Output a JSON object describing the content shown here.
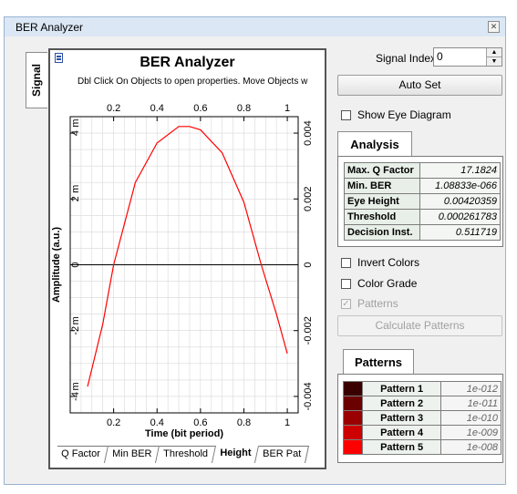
{
  "window": {
    "title": "BER Analyzer",
    "close_icon": "close-icon"
  },
  "side_tab": {
    "label": "Signal"
  },
  "plot": {
    "title": "BER Analyzer",
    "subtitle": "Dbl Click On Objects to open properties.  Move Objects w",
    "x_axis_label": "Time (bit period)",
    "y_axis_label": "Amplitude (a.u.)",
    "top_ticks": [
      "0.2",
      "0.4",
      "0.6",
      "0.8",
      "1"
    ],
    "bottom_ticks": [
      "0.2",
      "0.4",
      "0.6",
      "0.8",
      "1"
    ],
    "left_ticks": [
      "4",
      "2",
      "0",
      "-2",
      "-4"
    ],
    "left_units": [
      "m",
      "m",
      "m",
      "m"
    ],
    "right_ticks": [
      "0.004",
      "0.002",
      "0",
      "-0.002",
      "-0.004"
    ],
    "tabs": [
      "Q Factor",
      "Min BER",
      "Threshold",
      "Height",
      "BER Pat"
    ],
    "active_tab": "Height"
  },
  "chart_data": {
    "type": "line",
    "xlim": [
      0,
      1.05
    ],
    "ylim": [
      -0.0045,
      0.0045
    ],
    "series": [
      {
        "color": "#ff0000",
        "x": [
          0.08,
          0.15,
          0.2,
          0.3,
          0.4,
          0.5,
          0.55,
          0.6,
          0.7,
          0.8,
          0.88,
          0.95,
          1.0
        ],
        "y": [
          -0.0037,
          -0.0018,
          0.0,
          0.0025,
          0.0037,
          0.0042,
          0.0042,
          0.0041,
          0.0034,
          0.0019,
          0.0,
          -0.0015,
          -0.0027
        ]
      }
    ],
    "grid": true
  },
  "controls": {
    "signal_index_label": "Signal Index:",
    "signal_index_value": "0",
    "auto_set_label": "Auto Set",
    "show_eye_label": "Show Eye Diagram",
    "invert_colors_label": "Invert Colors",
    "color_grade_label": "Color Grade",
    "patterns_label": "Patterns",
    "calculate_label": "Calculate Patterns"
  },
  "analysis": {
    "tab_label": "Analysis",
    "rows": [
      {
        "key": "Max. Q Factor",
        "value": "17.1824"
      },
      {
        "key": "Min. BER",
        "value": "1.08833e-066"
      },
      {
        "key": "Eye Height",
        "value": "0.00420359"
      },
      {
        "key": "Threshold",
        "value": "0.000261783"
      },
      {
        "key": "Decision Inst.",
        "value": "0.511719"
      }
    ]
  },
  "patterns": {
    "tab_label": "Patterns",
    "rows": [
      {
        "name": "Pattern 1",
        "value": "1e-012",
        "color": "#3a0000"
      },
      {
        "name": "Pattern 2",
        "value": "1e-011",
        "color": "#6a0000"
      },
      {
        "name": "Pattern 3",
        "value": "1e-010",
        "color": "#9a0000"
      },
      {
        "name": "Pattern 4",
        "value": "1e-009",
        "color": "#cc0000"
      },
      {
        "name": "Pattern 5",
        "value": "1e-008",
        "color": "#ff0000"
      }
    ]
  }
}
